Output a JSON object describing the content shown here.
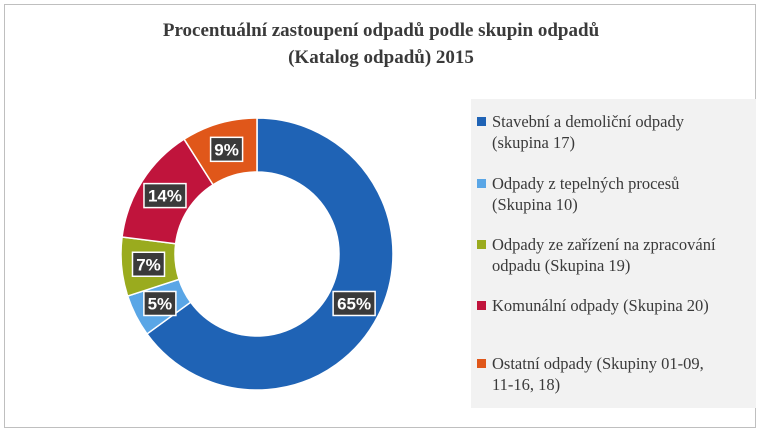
{
  "chart_data": {
    "type": "pie",
    "title_lines": [
      "Procentuální zastoupení odpadů podle skupin odpadů",
      "(Katalog odpadů) 2015"
    ],
    "slices": [
      {
        "label_lines": [
          "Stavební a demoliční odpady",
          "(skupina 17)"
        ],
        "value": 65,
        "value_label": "65%",
        "color": "#1f63b5"
      },
      {
        "label_lines": [
          "Odpady z tepelných procesů",
          "(Skupina 10)"
        ],
        "value": 5,
        "value_label": "5%",
        "color": "#5aa6e6"
      },
      {
        "label_lines": [
          "Odpady ze zařízení na zpracování",
          "odpadu (Skupina 19)"
        ],
        "value": 7,
        "value_label": "7%",
        "color": "#9aab1e"
      },
      {
        "label_lines": [
          "Komunální odpady (Skupina 20)"
        ],
        "value": 14,
        "value_label": "14%",
        "color": "#c0143c"
      },
      {
        "label_lines": [
          "Ostatní odpady (Skupiny 01-09,",
          "11-16, 18)"
        ],
        "value": 9,
        "value_label": "9%",
        "color": "#e0571a"
      }
    ],
    "donut": true,
    "legend_position": "right"
  }
}
